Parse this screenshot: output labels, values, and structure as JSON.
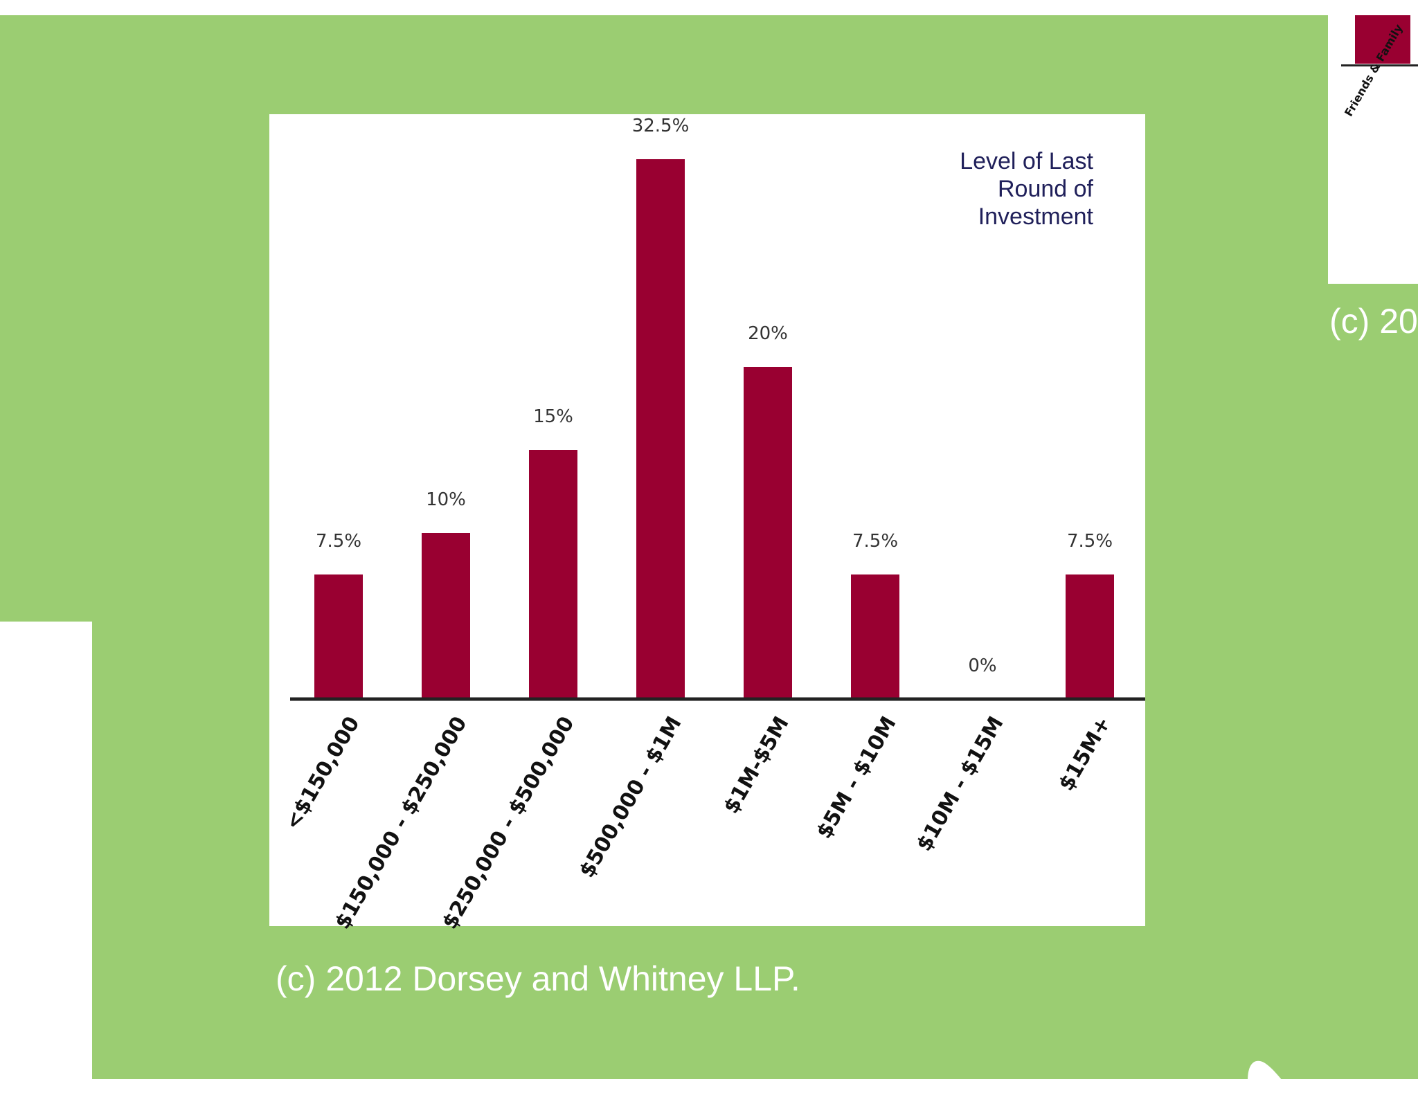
{
  "chart_data": {
    "type": "bar",
    "title": "Level of Last\nRound of\nInvestment",
    "categories": [
      "<$150,000",
      "$150,000 - $250,000",
      "$250,000 - $500,000",
      "$500,000 - $1M",
      "$1M-$5M",
      "$5M - $10M",
      "$10M - $15M",
      "$15M+"
    ],
    "values": [
      7.5,
      10,
      15,
      32.5,
      20,
      7.5,
      0,
      7.5
    ],
    "value_labels": [
      "7.5%",
      "10%",
      "15%",
      "32.5%",
      "20%",
      "7.5%",
      "0%",
      "7.5%"
    ],
    "xlabel": "",
    "ylabel": "",
    "ylim": [
      0,
      32.5
    ],
    "bar_color": "#990031"
  },
  "caption": "(c) 2012 Dorsey and Whitney LLP.",
  "side_slide": {
    "label": "Friends & Family",
    "caption": "(c) 20"
  },
  "colors": {
    "background": "#9bcd72",
    "panel": "#ffffff",
    "title": "#20205a"
  }
}
